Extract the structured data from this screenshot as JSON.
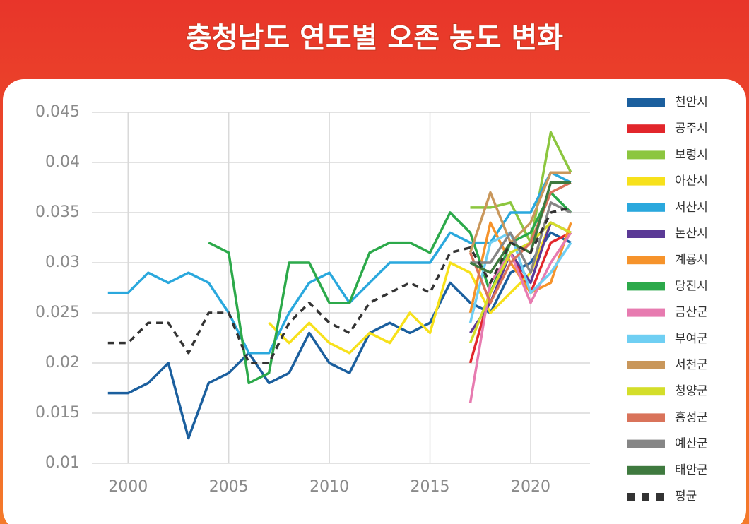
{
  "chart_data": {
    "type": "line",
    "title": "충청남도 연도별 오존 농도 변화",
    "x": [
      1999,
      2000,
      2001,
      2002,
      2003,
      2004,
      2005,
      2006,
      2007,
      2008,
      2009,
      2010,
      2011,
      2012,
      2013,
      2014,
      2015,
      2016,
      2017,
      2018,
      2019,
      2020,
      2021,
      2022
    ],
    "xlim": [
      1998.2,
      2022.95
    ],
    "xticks": [
      2000,
      2005,
      2010,
      2015,
      2020
    ],
    "ylim": [
      0.01,
      0.045
    ],
    "yticks": [
      0.01,
      0.015,
      0.02,
      0.025,
      0.03,
      0.035,
      0.04,
      0.045
    ],
    "grid": true,
    "legend": "right",
    "series": [
      {
        "name": "천안시",
        "color": "#1b5f9e",
        "values": [
          0.017,
          0.017,
          0.018,
          0.02,
          0.0125,
          0.018,
          0.019,
          0.021,
          0.018,
          0.019,
          0.023,
          0.02,
          0.019,
          0.023,
          0.024,
          0.023,
          0.024,
          0.028,
          0.026,
          0.025,
          0.029,
          0.03,
          0.033,
          0.032
        ]
      },
      {
        "name": "공주시",
        "color": "#e2262b",
        "values": [
          null,
          null,
          null,
          null,
          null,
          null,
          null,
          null,
          null,
          null,
          null,
          null,
          null,
          null,
          null,
          null,
          null,
          null,
          0.02,
          0.027,
          0.031,
          0.027,
          0.032,
          0.033
        ]
      },
      {
        "name": "보령시",
        "color": "#8cc63f",
        "values": [
          null,
          null,
          null,
          null,
          null,
          null,
          null,
          null,
          null,
          null,
          null,
          null,
          null,
          null,
          null,
          null,
          null,
          null,
          0.0355,
          0.0355,
          0.036,
          0.032,
          0.043,
          0.039
        ]
      },
      {
        "name": "아산시",
        "color": "#f7e11b",
        "values": [
          null,
          null,
          null,
          null,
          null,
          null,
          null,
          null,
          0.024,
          0.022,
          0.024,
          0.022,
          0.021,
          0.023,
          0.022,
          0.025,
          0.023,
          0.03,
          0.029,
          0.025,
          0.027,
          0.029,
          0.034,
          0.033
        ]
      },
      {
        "name": "서산시",
        "color": "#2aa8dd",
        "values": [
          0.027,
          0.027,
          0.029,
          0.028,
          0.029,
          0.028,
          0.025,
          0.021,
          0.021,
          0.025,
          0.028,
          0.029,
          0.026,
          0.028,
          0.03,
          0.03,
          0.03,
          0.033,
          0.032,
          0.032,
          0.035,
          0.035,
          0.039,
          0.038
        ]
      },
      {
        "name": "논산시",
        "color": "#5b3a96",
        "values": [
          null,
          null,
          null,
          null,
          null,
          null,
          null,
          null,
          null,
          null,
          null,
          null,
          null,
          null,
          null,
          null,
          null,
          null,
          0.023,
          0.026,
          0.031,
          0.028,
          0.034,
          0.033
        ]
      },
      {
        "name": "계룡시",
        "color": "#f6932b",
        "values": [
          null,
          null,
          null,
          null,
          null,
          null,
          null,
          null,
          null,
          null,
          null,
          null,
          null,
          null,
          null,
          null,
          null,
          null,
          0.025,
          0.034,
          0.03,
          0.027,
          0.028,
          0.034
        ]
      },
      {
        "name": "당진시",
        "color": "#2ca94a",
        "values": [
          null,
          null,
          null,
          null,
          null,
          0.032,
          0.031,
          0.018,
          0.019,
          0.03,
          0.03,
          0.026,
          0.026,
          0.031,
          0.032,
          0.032,
          0.031,
          0.035,
          0.033,
          0.027,
          0.032,
          0.033,
          0.037,
          0.035
        ]
      },
      {
        "name": "금산군",
        "color": "#e77bb0",
        "values": [
          null,
          null,
          null,
          null,
          null,
          null,
          null,
          null,
          null,
          null,
          null,
          null,
          null,
          null,
          null,
          null,
          null,
          null,
          0.016,
          0.028,
          0.031,
          0.026,
          0.03,
          0.033
        ]
      },
      {
        "name": "부여군",
        "color": "#6fcff3",
        "values": [
          null,
          null,
          null,
          null,
          null,
          null,
          null,
          null,
          null,
          null,
          null,
          null,
          null,
          null,
          null,
          null,
          null,
          null,
          0.024,
          0.032,
          0.033,
          0.027,
          0.029,
          0.032
        ]
      },
      {
        "name": "서천군",
        "color": "#c9975b",
        "values": [
          null,
          null,
          null,
          null,
          null,
          null,
          null,
          null,
          null,
          null,
          null,
          null,
          null,
          null,
          null,
          null,
          null,
          null,
          0.031,
          0.037,
          0.032,
          0.034,
          0.039,
          0.039
        ]
      },
      {
        "name": "청양군",
        "color": "#d4de2a",
        "values": [
          null,
          null,
          null,
          null,
          null,
          null,
          null,
          null,
          null,
          null,
          null,
          null,
          null,
          null,
          null,
          null,
          null,
          null,
          0.022,
          0.027,
          0.031,
          0.032,
          0.034,
          0.033
        ]
      },
      {
        "name": "홍성군",
        "color": "#d9735a",
        "values": [
          null,
          null,
          null,
          null,
          null,
          null,
          null,
          null,
          null,
          null,
          null,
          null,
          null,
          null,
          null,
          null,
          null,
          null,
          0.031,
          0.026,
          0.03,
          0.032,
          0.037,
          0.038
        ]
      },
      {
        "name": "예산군",
        "color": "#868686",
        "values": [
          null,
          null,
          null,
          null,
          null,
          null,
          null,
          null,
          null,
          null,
          null,
          null,
          null,
          null,
          null,
          null,
          null,
          null,
          0.03,
          0.03,
          0.033,
          0.029,
          0.036,
          0.035
        ]
      },
      {
        "name": "태안군",
        "color": "#3f7a3f",
        "values": [
          null,
          null,
          null,
          null,
          null,
          null,
          null,
          null,
          null,
          null,
          null,
          null,
          null,
          null,
          null,
          null,
          null,
          null,
          0.03,
          0.029,
          0.032,
          0.031,
          0.038,
          0.038
        ]
      },
      {
        "name": "평균",
        "color": "#333333",
        "line_style": "dashed",
        "values": [
          0.022,
          0.022,
          0.024,
          0.024,
          0.021,
          0.025,
          0.025,
          0.02,
          0.02,
          0.024,
          0.026,
          0.024,
          0.023,
          0.026,
          0.027,
          0.028,
          0.027,
          0.031,
          0.0315,
          0.028,
          0.032,
          0.031,
          0.035,
          0.0355
        ]
      }
    ]
  }
}
